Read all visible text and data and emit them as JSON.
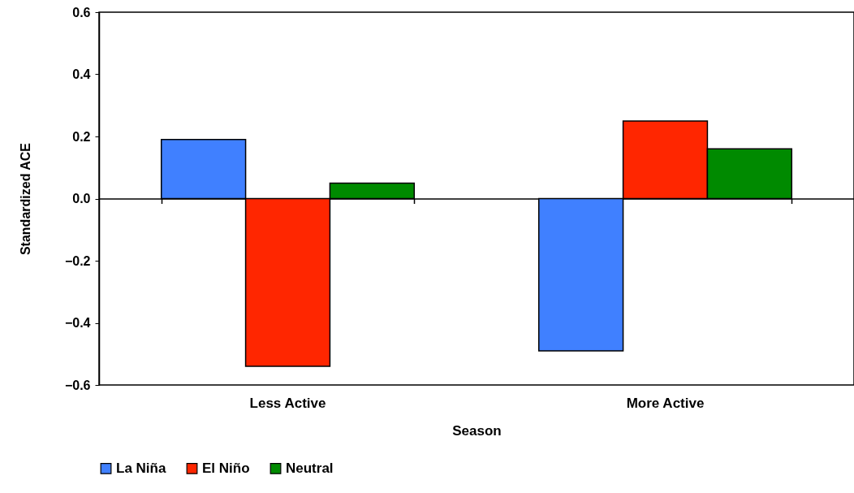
{
  "chart_data": {
    "type": "bar",
    "xlabel": "Season",
    "ylabel": "Standardized ACE",
    "categories": [
      "Less Active",
      "More Active"
    ],
    "series": [
      {
        "name": "La Niña",
        "color": "#4080ff",
        "values": [
          0.19,
          -0.49
        ]
      },
      {
        "name": "El Niño",
        "color": "#ff2600",
        "values": [
          -0.54,
          0.25
        ]
      },
      {
        "name": "Neutral",
        "color": "#008a00",
        "values": [
          0.05,
          0.16
        ]
      }
    ],
    "ylim": [
      -0.6,
      0.6
    ],
    "yticks": [
      -0.6,
      -0.4,
      -0.2,
      {
        "value": 0,
        "label": "0.0"
      },
      0.2,
      0.4,
      0.6
    ],
    "legend": "bottom"
  }
}
